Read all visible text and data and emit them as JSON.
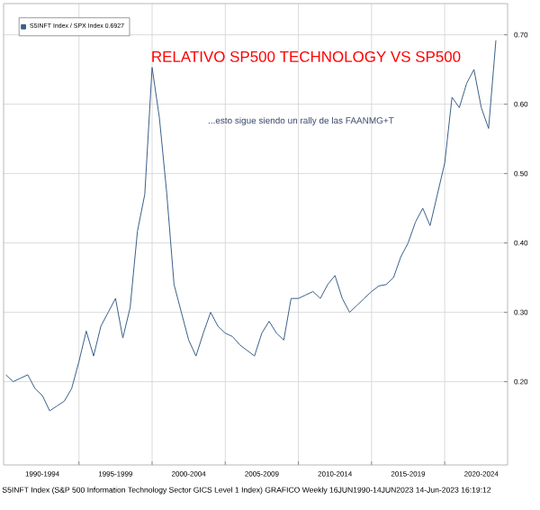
{
  "chart_data": {
    "type": "line",
    "title": "RELATIVO SP500 TECHNOLOGY VS SP500",
    "subtitle": "...esto sigue siendo un rally de las FAANMG+T",
    "annotations": [
      "S5INFT Index (S&P 500 Information Technology Sector GICS Level 1 Index) GRAFICO Weekly 16JUN1990-14JUN2023 14-Jun-2023 16:19:12"
    ],
    "categories": [
      null,
      null,
      null,
      null,
      null,
      "1990-1994",
      null,
      null,
      null,
      null,
      null,
      null,
      null,
      null,
      null,
      "1995-1999",
      null,
      null,
      null,
      null,
      null,
      null,
      null,
      null,
      null,
      "2000-2004",
      null,
      null,
      null,
      null,
      null,
      null,
      null,
      null,
      null,
      "2005-2009",
      null,
      null,
      null,
      null,
      null,
      null,
      null,
      null,
      null,
      "2010-2014",
      null,
      null,
      null,
      null,
      null,
      null,
      null,
      null,
      null,
      "2015-2019",
      null,
      null,
      null,
      null,
      null,
      null,
      null,
      null,
      null,
      "2020-2024",
      null,
      null
    ],
    "series": [
      {
        "name": "S5INFT Index / SPX Index 0.6927",
        "color": "#3a5f8a",
        "values": [
          0.21,
          0.2,
          0.205,
          0.21,
          0.19,
          0.18,
          0.158,
          0.165,
          0.172,
          0.19,
          0.229,
          0.273,
          0.237,
          0.28,
          0.3,
          0.32,
          0.263,
          0.307,
          0.417,
          0.47,
          0.653,
          0.58,
          0.472,
          0.34,
          0.3,
          0.26,
          0.237,
          0.27,
          0.3,
          0.28,
          0.27,
          0.265,
          0.253,
          0.245,
          0.237,
          0.27,
          0.287,
          0.27,
          0.26,
          0.32,
          0.32,
          0.325,
          0.33,
          0.32,
          0.34,
          0.353,
          0.32,
          0.3,
          0.31,
          0.32,
          0.33,
          0.338,
          0.34,
          0.35,
          0.38,
          0.4,
          0.43,
          0.45,
          0.425,
          0.47,
          0.515,
          0.61,
          0.595,
          0.63,
          0.65,
          0.595,
          0.565,
          0.692
        ]
      }
    ],
    "ylim": [
      0.08,
      0.745
    ],
    "yticks": [
      {
        "value": 0.2,
        "label": "0.20"
      },
      {
        "value": 0.3,
        "label": "0.30"
      },
      {
        "value": 0.4,
        "label": "0.40"
      },
      {
        "value": 0.5,
        "label": "0.50"
      },
      {
        "value": 0.6,
        "label": "0.60"
      },
      {
        "value": 0.7,
        "label": "0.70"
      }
    ],
    "grid": true,
    "legend": "top left",
    "marker": "none",
    "line_style": "solid"
  }
}
